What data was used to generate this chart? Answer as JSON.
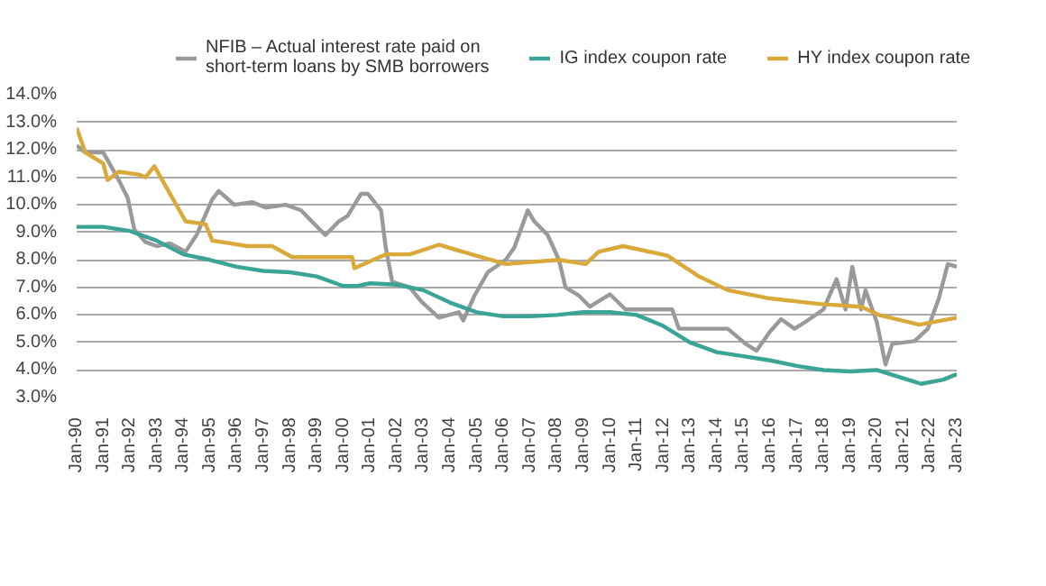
{
  "chart_data": {
    "type": "line",
    "legend": "top",
    "grid": "y",
    "line_style": "solid",
    "marker": "none",
    "xlim": [
      "1990-01",
      "2023-01"
    ],
    "ylim": [
      3,
      14
    ],
    "xticks": [
      {
        "value": "1990-01",
        "label": "Jan-90"
      },
      {
        "value": "1991-01",
        "label": "Jan-91"
      },
      {
        "value": "1992-01",
        "label": "Jan-92"
      },
      {
        "value": "1993-01",
        "label": "Jan-93"
      },
      {
        "value": "1994-01",
        "label": "Jan-94"
      },
      {
        "value": "1995-01",
        "label": "Jan-95"
      },
      {
        "value": "1996-01",
        "label": "Jan-96"
      },
      {
        "value": "1997-01",
        "label": "Jan-97"
      },
      {
        "value": "1998-01",
        "label": "Jan-98"
      },
      {
        "value": "1999-01",
        "label": "Jan-99"
      },
      {
        "value": "2000-01",
        "label": "Jan-00"
      },
      {
        "value": "2001-01",
        "label": "Jan-01"
      },
      {
        "value": "2002-01",
        "label": "Jan-02"
      },
      {
        "value": "2003-01",
        "label": "Jan-03"
      },
      {
        "value": "2004-01",
        "label": "Jan-04"
      },
      {
        "value": "2005-01",
        "label": "Jan-05"
      },
      {
        "value": "2006-01",
        "label": "Jan-06"
      },
      {
        "value": "2007-01",
        "label": "Jan-07"
      },
      {
        "value": "2008-01",
        "label": "Jan-08"
      },
      {
        "value": "2009-01",
        "label": "Jan-09"
      },
      {
        "value": "2010-01",
        "label": "Jan-10"
      },
      {
        "value": "2011-01",
        "label": "Jan-11"
      },
      {
        "value": "2012-01",
        "label": "Jan-12"
      },
      {
        "value": "2013-01",
        "label": "Jan-13"
      },
      {
        "value": "2014-01",
        "label": "Jan-14"
      },
      {
        "value": "2015-01",
        "label": "Jan-15"
      },
      {
        "value": "2016-01",
        "label": "Jan-16"
      },
      {
        "value": "2017-01",
        "label": "Jan-17"
      },
      {
        "value": "2018-01",
        "label": "Jan-18"
      },
      {
        "value": "2019-01",
        "label": "Jan-19"
      },
      {
        "value": "2020-01",
        "label": "Jan-20"
      },
      {
        "value": "2021-01",
        "label": "Jan-21"
      },
      {
        "value": "2022-01",
        "label": "Jan-22"
      },
      {
        "value": "2023-01",
        "label": "Jan-23"
      }
    ],
    "yticks": [
      {
        "value": 3,
        "label": "3.0%"
      },
      {
        "value": 4,
        "label": "4.0%"
      },
      {
        "value": 5,
        "label": "5.0%"
      },
      {
        "value": 6,
        "label": "6.0%"
      },
      {
        "value": 7,
        "label": "7.0%"
      },
      {
        "value": 8,
        "label": "8.0%"
      },
      {
        "value": 9,
        "label": "9.0%"
      },
      {
        "value": 10,
        "label": "10.0%"
      },
      {
        "value": 11,
        "label": "11.0%"
      },
      {
        "value": 12,
        "label": "12.0%"
      },
      {
        "value": 13,
        "label": "13.0%"
      },
      {
        "value": 14,
        "label": "14.0%"
      }
    ],
    "series": [
      {
        "name": "NFIB – Actual interest rate paid on\nshort-term loans by SMB borrowers",
        "color": "#9a9a9a",
        "x": [
          "1990-01",
          "1990-05",
          "1991-01",
          "1991-08",
          "1991-12",
          "1992-03",
          "1992-08",
          "1993-01",
          "1993-07",
          "1994-02",
          "1994-07",
          "1995-02",
          "1995-05",
          "1995-12",
          "1996-08",
          "1997-02",
          "1997-11",
          "1998-06",
          "1998-12",
          "1999-05",
          "1999-11",
          "2000-03",
          "2000-09",
          "2000-12",
          "2001-06",
          "2001-08",
          "2001-11",
          "2002-07",
          "2002-12",
          "2003-08",
          "2004-05",
          "2004-07",
          "2004-12",
          "2005-06",
          "2006-02",
          "2006-06",
          "2006-12",
          "2007-03",
          "2007-09",
          "2008-02",
          "2008-05",
          "2008-11",
          "2009-04",
          "2010-01",
          "2010-08",
          "2011-07",
          "2012-05",
          "2012-08",
          "2013-05",
          "2014-06",
          "2015-02",
          "2015-07",
          "2016-01",
          "2016-06",
          "2016-12",
          "2017-05",
          "2018-01",
          "2018-07",
          "2018-11",
          "2019-02",
          "2019-06",
          "2019-08",
          "2020-01",
          "2020-05",
          "2020-08",
          "2021-06",
          "2021-12",
          "2022-05",
          "2022-09",
          "2023-01"
        ],
        "values": [
          12.15,
          11.9,
          11.9,
          10.9,
          10.25,
          9.1,
          8.65,
          8.5,
          8.6,
          8.3,
          8.9,
          10.2,
          10.5,
          10.0,
          10.1,
          9.9,
          10.0,
          9.8,
          9.3,
          8.9,
          9.4,
          9.6,
          10.4,
          10.4,
          9.8,
          8.5,
          7.2,
          7.0,
          6.5,
          5.9,
          6.1,
          5.8,
          6.7,
          7.55,
          8.0,
          8.45,
          9.8,
          9.4,
          8.9,
          8.0,
          7.0,
          6.7,
          6.3,
          6.75,
          6.2,
          6.2,
          6.2,
          5.5,
          5.5,
          5.5,
          4.95,
          4.7,
          5.4,
          5.85,
          5.5,
          5.75,
          6.2,
          7.3,
          6.2,
          7.75,
          6.2,
          6.9,
          5.75,
          4.2,
          4.95,
          5.05,
          5.5,
          6.6,
          7.85,
          7.75
        ]
      },
      {
        "name": "IG index coupon rate",
        "color": "#3aa596",
        "x": [
          "1990-01",
          "1991-01",
          "1992-01",
          "1993-01",
          "1994-01",
          "1995-01",
          "1996-01",
          "1997-01",
          "1998-01",
          "1999-01",
          "2000-01",
          "2000-07",
          "2001-01",
          "2002-01",
          "2003-01",
          "2004-01",
          "2005-01",
          "2006-01",
          "2007-01",
          "2008-01",
          "2009-01",
          "2010-01",
          "2011-01",
          "2012-01",
          "2013-01",
          "2014-01",
          "2015-01",
          "2016-01",
          "2017-01",
          "2018-01",
          "2019-01",
          "2020-01",
          "2021-01",
          "2021-09",
          "2022-07",
          "2023-01"
        ],
        "values": [
          9.2,
          9.2,
          9.05,
          8.7,
          8.2,
          8.0,
          7.75,
          7.6,
          7.55,
          7.4,
          7.05,
          7.05,
          7.15,
          7.1,
          6.9,
          6.45,
          6.1,
          5.95,
          5.95,
          6.0,
          6.1,
          6.1,
          6.0,
          5.6,
          5.0,
          4.65,
          4.5,
          4.35,
          4.15,
          4.0,
          3.95,
          4.0,
          3.7,
          3.5,
          3.65,
          3.85
        ]
      },
      {
        "name": "HY index coupon rate",
        "color": "#d9a93a",
        "x": [
          "1990-01",
          "1990-05",
          "1991-01",
          "1991-03",
          "1991-08",
          "1992-05",
          "1992-08",
          "1992-12",
          "1994-02",
          "1994-11",
          "1995-02",
          "1996-06",
          "1997-05",
          "1998-02",
          "2000-05",
          "2000-06",
          "2001-08",
          "2002-07",
          "2003-08",
          "2005-03",
          "2006-02",
          "2008-02",
          "2009-02",
          "2009-08",
          "2010-07",
          "2012-03",
          "2013-05",
          "2014-06",
          "2016-01",
          "2017-11",
          "2019-06",
          "2020-02",
          "2021-08",
          "2023-01"
        ],
        "values": [
          12.8,
          11.9,
          11.5,
          10.9,
          11.2,
          11.1,
          11.0,
          11.4,
          9.4,
          9.3,
          8.7,
          8.5,
          8.5,
          8.1,
          8.1,
          7.7,
          8.2,
          8.2,
          8.55,
          8.1,
          7.85,
          8.0,
          7.85,
          8.3,
          8.5,
          8.15,
          7.4,
          6.9,
          6.6,
          6.4,
          6.3,
          6.0,
          5.65,
          5.9
        ]
      }
    ]
  }
}
